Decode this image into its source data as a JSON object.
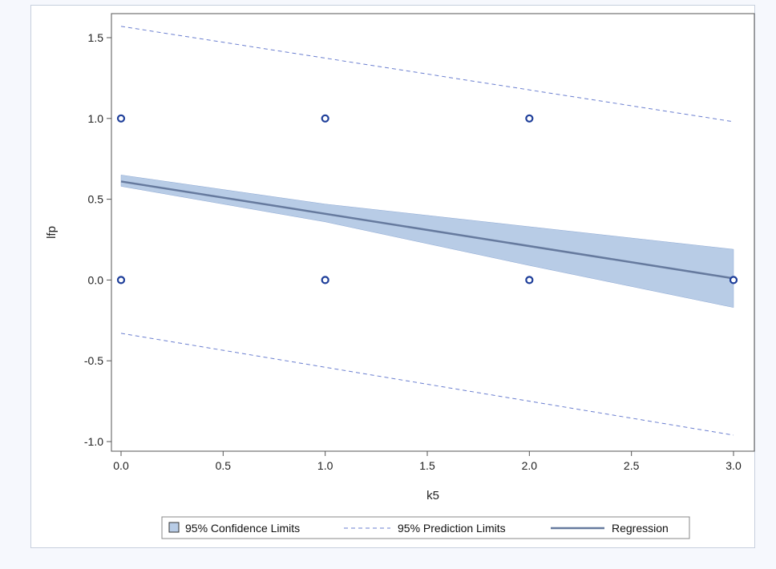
{
  "chart_data": {
    "type": "scatter",
    "xlabel": "k5",
    "ylabel": "lfp",
    "xlim": [
      0,
      3
    ],
    "ylim": [
      -1,
      1.5
    ],
    "x_ticks": [
      "0.0",
      "0.5",
      "1.0",
      "1.5",
      "2.0",
      "2.5",
      "3.0"
    ],
    "y_ticks": [
      "-1.0",
      "-0.5",
      "0.0",
      "0.5",
      "1.0",
      "1.5"
    ],
    "grid": false,
    "legend_placement": "bottom",
    "points": [
      {
        "x": 0,
        "y": 1
      },
      {
        "x": 1,
        "y": 1
      },
      {
        "x": 2,
        "y": 1
      },
      {
        "x": 0,
        "y": 0
      },
      {
        "x": 1,
        "y": 0
      },
      {
        "x": 2,
        "y": 0
      },
      {
        "x": 3,
        "y": 0
      }
    ],
    "regression": {
      "x": [
        0,
        3
      ],
      "y": [
        0.61,
        0.01
      ]
    },
    "confidence_limits": {
      "x": [
        0,
        1,
        2,
        3
      ],
      "lower": [
        0.58,
        0.36,
        0.09,
        -0.17
      ],
      "upper": [
        0.65,
        0.47,
        0.33,
        0.19
      ]
    },
    "prediction_limits": {
      "x": [
        0,
        3
      ],
      "lower": [
        -0.33,
        -0.96
      ],
      "upper": [
        1.57,
        0.98
      ]
    },
    "legend": [
      {
        "key": "confidence",
        "label": "95% Confidence Limits"
      },
      {
        "key": "prediction",
        "label": "95% Prediction Limits"
      },
      {
        "key": "regression",
        "label": "Regression"
      }
    ],
    "colors": {
      "marker": "#1f3f9a",
      "band_fill": "#b8cce6",
      "band_stroke": "#8ea9d4",
      "prediction": "#6b7fd0",
      "regression": "#667a9e"
    }
  }
}
